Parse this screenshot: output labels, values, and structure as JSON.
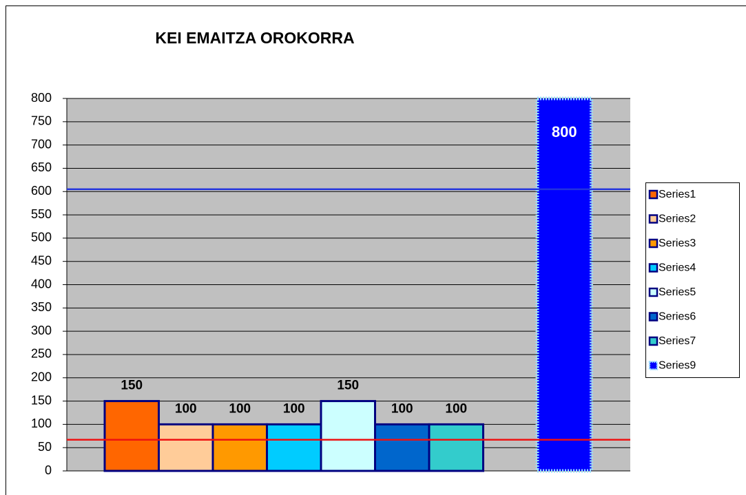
{
  "chart_data": {
    "type": "bar",
    "title": "KEI EMAITZA OROKORRA",
    "series": [
      {
        "name": "Series1",
        "color": "#ff6600",
        "values": [
          150
        ]
      },
      {
        "name": "Series2",
        "color": "#ffcc99",
        "values": [
          100
        ]
      },
      {
        "name": "Series3",
        "color": "#ff9900",
        "values": [
          100
        ]
      },
      {
        "name": "Series4",
        "color": "#00ccff",
        "values": [
          100
        ]
      },
      {
        "name": "Series5",
        "color": "#ccffff",
        "values": [
          150
        ]
      },
      {
        "name": "Series6",
        "color": "#0066cc",
        "values": [
          100
        ]
      },
      {
        "name": "Series7",
        "color": "#33cccc",
        "values": [
          100
        ]
      },
      {
        "name": "Series9",
        "color": "#0000ff",
        "values": [
          800
        ]
      }
    ],
    "reference_lines": [
      {
        "color": "#2233dd",
        "value": 605
      },
      {
        "color": "#ee1111",
        "value": 67
      }
    ],
    "ylim": [
      0,
      800
    ],
    "yticks": [
      0,
      50,
      100,
      150,
      200,
      250,
      300,
      350,
      400,
      450,
      500,
      550,
      600,
      650,
      700,
      750,
      800
    ],
    "grid": true,
    "legend": "right"
  }
}
